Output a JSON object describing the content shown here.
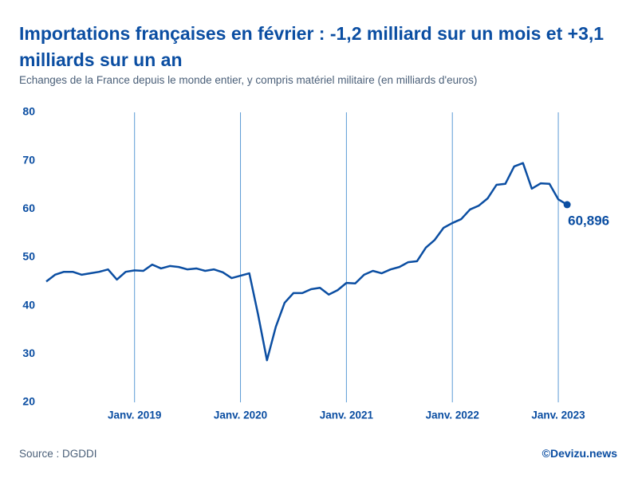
{
  "chart_data": {
    "type": "line",
    "title": "Importations françaises en février : -1,2 milliard sur un mois et +3,1 milliards sur un an",
    "subtitle": "Echanges de la France depuis le monde entier, y compris matériel militaire (en milliards d'euros)",
    "source": "Source : DGDDI",
    "credit": "©Devizu.news",
    "x": [
      "2018-03",
      "2018-04",
      "2018-05",
      "2018-06",
      "2018-07",
      "2018-08",
      "2018-09",
      "2018-10",
      "2018-11",
      "2018-12",
      "2019-01",
      "2019-02",
      "2019-03",
      "2019-04",
      "2019-05",
      "2019-06",
      "2019-07",
      "2019-08",
      "2019-09",
      "2019-10",
      "2019-11",
      "2019-12",
      "2020-01",
      "2020-02",
      "2020-03",
      "2020-04",
      "2020-05",
      "2020-06",
      "2020-07",
      "2020-08",
      "2020-09",
      "2020-10",
      "2020-11",
      "2020-12",
      "2021-01",
      "2021-02",
      "2021-03",
      "2021-04",
      "2021-05",
      "2021-06",
      "2021-07",
      "2021-08",
      "2021-09",
      "2021-10",
      "2021-11",
      "2021-12",
      "2022-01",
      "2022-02",
      "2022-03",
      "2022-04",
      "2022-05",
      "2022-06",
      "2022-07",
      "2022-08",
      "2022-09",
      "2022-10",
      "2022-11",
      "2022-12",
      "2023-01",
      "2023-02"
    ],
    "series": [
      {
        "name": "Importations",
        "color": "#0b4ea2",
        "values": [
          45.0,
          46.4,
          47.0,
          47.0,
          46.4,
          46.7,
          47.0,
          47.5,
          45.4,
          47.0,
          47.3,
          47.2,
          48.5,
          47.7,
          48.2,
          48.0,
          47.5,
          47.7,
          47.2,
          47.5,
          46.9,
          45.7,
          46.2,
          46.7,
          38.1,
          28.7,
          35.6,
          40.6,
          42.6,
          42.6,
          43.4,
          43.7,
          42.3,
          43.2,
          44.7,
          44.6,
          46.4,
          47.2,
          46.7,
          47.5,
          48.0,
          49.0,
          49.2,
          52.0,
          53.6,
          56.1,
          57.1,
          57.9,
          59.9,
          60.7,
          62.2,
          65.0,
          65.2,
          68.8,
          69.5,
          64.2,
          65.3,
          65.2,
          62.0,
          60.896
        ],
        "value_labels": [
          null,
          null,
          null,
          null,
          null,
          null,
          null,
          null,
          null,
          null,
          null,
          null,
          null,
          null,
          null,
          null,
          null,
          null,
          null,
          null,
          null,
          null,
          null,
          null,
          null,
          null,
          null,
          null,
          null,
          null,
          null,
          null,
          null,
          null,
          null,
          null,
          null,
          null,
          null,
          null,
          null,
          null,
          null,
          null,
          null,
          null,
          null,
          null,
          null,
          null,
          null,
          null,
          null,
          null,
          null,
          null,
          null,
          null,
          null,
          "60,896"
        ]
      }
    ],
    "ylim": [
      20,
      80
    ],
    "yticks": [
      20,
      30,
      40,
      50,
      60,
      70,
      80
    ],
    "xticks": [
      {
        "value": "2019-01",
        "label": "Janv. 2019"
      },
      {
        "value": "2020-01",
        "label": "Janv. 2020"
      },
      {
        "value": "2021-01",
        "label": "Janv. 2021"
      },
      {
        "value": "2022-01",
        "label": "Janv. 2022"
      },
      {
        "value": "2023-01",
        "label": "Janv. 2023"
      }
    ],
    "grid": "x"
  }
}
